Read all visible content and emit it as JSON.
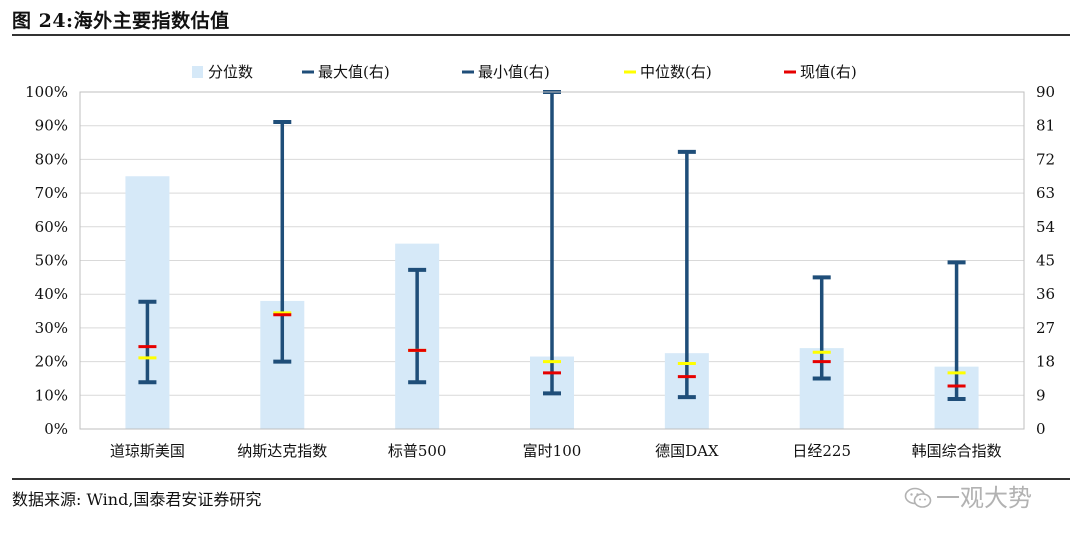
{
  "title": "图 24:海外主要指数估值",
  "source": "数据来源: Wind,国泰君安证券研究",
  "watermark": "一观大势",
  "colors": {
    "bar": "#d6e9f8",
    "max": "#1f4e79",
    "min": "#1f4e79",
    "median": "#ffff00",
    "current": "#e60000"
  },
  "chart_data": {
    "type": "bar",
    "title": "海外主要指数估值",
    "categories": [
      "道琼斯美国",
      "纳斯达克指数",
      "标普500",
      "富时100",
      "德国DAX",
      "日经225",
      "韩国综合指数"
    ],
    "legend": [
      "分位数",
      "最大值(右)",
      "最小值(右)",
      "中位数(右)",
      "现值(右)"
    ],
    "legend_position": "top",
    "left_axis": {
      "min": 0,
      "max": 100,
      "step": 10,
      "format": "percent",
      "ticks": [
        "0%",
        "10%",
        "20%",
        "30%",
        "40%",
        "50%",
        "60%",
        "70%",
        "80%",
        "90%",
        "100%"
      ]
    },
    "right_axis": {
      "min": 0,
      "max": 90,
      "step": 9,
      "ticks": [
        "0",
        "9",
        "18",
        "27",
        "36",
        "45",
        "54",
        "63",
        "72",
        "81",
        "90"
      ]
    },
    "grid": true,
    "series": [
      {
        "name": "分位数",
        "axis": "left",
        "values": [
          75,
          38,
          55,
          21.5,
          22.5,
          24,
          18.5
        ]
      },
      {
        "name": "最大值(右)",
        "axis": "right",
        "values": [
          34,
          82,
          42.5,
          90,
          74,
          40.5,
          44.5
        ]
      },
      {
        "name": "最小值(右)",
        "axis": "right",
        "values": [
          12.5,
          18,
          12.5,
          9.5,
          8.5,
          13.5,
          8
        ]
      },
      {
        "name": "中位数(右)",
        "axis": "right",
        "values": [
          19,
          31,
          21,
          18,
          17.5,
          20.5,
          15
        ]
      },
      {
        "name": "现值(右)",
        "axis": "right",
        "values": [
          22,
          30.5,
          21,
          15,
          14,
          18,
          11.5
        ]
      }
    ]
  }
}
